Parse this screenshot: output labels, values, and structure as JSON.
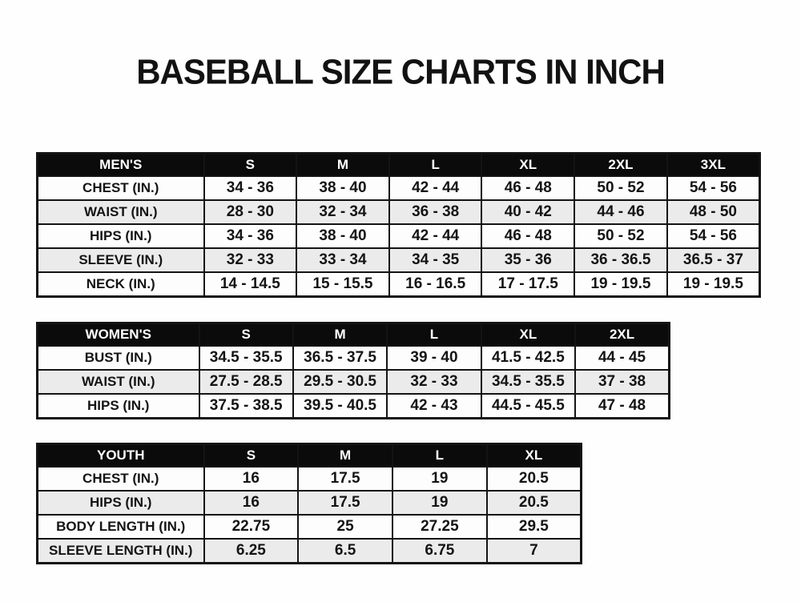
{
  "title": "BASEBALL SIZE CHARTS IN INCH",
  "colors": {
    "header_bg": "#0b0b0b",
    "header_text": "#ffffff",
    "row_bg": "#fdfdfd",
    "row_alt_bg": "#ebebeb",
    "border": "#141414",
    "text": "#141414",
    "page_bg": "#fefefe"
  },
  "chart_data": [
    {
      "type": "table",
      "name": "mens",
      "title": "MEN'S",
      "columns": [
        "MEN'S",
        "S",
        "M",
        "L",
        "XL",
        "2XL",
        "3XL"
      ],
      "rows": [
        [
          "CHEST (IN.)",
          "34 - 36",
          "38 - 40",
          "42 - 44",
          "46 - 48",
          "50 - 52",
          "54 - 56"
        ],
        [
          "WAIST (IN.)",
          "28 - 30",
          "32 - 34",
          "36 - 38",
          "40 - 42",
          "44 - 46",
          "48 - 50"
        ],
        [
          "HIPS (IN.)",
          "34 - 36",
          "38 - 40",
          "42 - 44",
          "46 - 48",
          "50 - 52",
          "54 - 56"
        ],
        [
          "SLEEVE (IN.)",
          "32 - 33",
          "33 - 34",
          "34 - 35",
          "35 - 36",
          "36 - 36.5",
          "36.5 - 37"
        ],
        [
          "NECK (IN.)",
          "14 - 14.5",
          "15 - 15.5",
          "16 - 16.5",
          "17 - 17.5",
          "19 - 19.5",
          "19 - 19.5"
        ]
      ]
    },
    {
      "type": "table",
      "name": "womens",
      "title": "WOMEN'S",
      "columns": [
        "WOMEN'S",
        "S",
        "M",
        "L",
        "XL",
        "2XL"
      ],
      "rows": [
        [
          "BUST (IN.)",
          "34.5 - 35.5",
          "36.5 - 37.5",
          "39 - 40",
          "41.5 - 42.5",
          "44 - 45"
        ],
        [
          "WAIST (IN.)",
          "27.5 - 28.5",
          "29.5 - 30.5",
          "32 - 33",
          "34.5 - 35.5",
          "37 - 38"
        ],
        [
          "HIPS (IN.)",
          "37.5 - 38.5",
          "39.5 - 40.5",
          "42 - 43",
          "44.5 - 45.5",
          "47 - 48"
        ]
      ]
    },
    {
      "type": "table",
      "name": "youth",
      "title": "YOUTH",
      "columns": [
        "YOUTH",
        "S",
        "M",
        "L",
        "XL"
      ],
      "rows": [
        [
          "CHEST (IN.)",
          "16",
          "17.5",
          "19",
          "20.5"
        ],
        [
          "HIPS (IN.)",
          "16",
          "17.5",
          "19",
          "20.5"
        ],
        [
          "BODY LENGTH (IN.)",
          "22.75",
          "25",
          "27.25",
          "29.5"
        ],
        [
          "SLEEVE LENGTH (IN.)",
          "6.25",
          "6.5",
          "6.75",
          "7"
        ]
      ]
    }
  ]
}
